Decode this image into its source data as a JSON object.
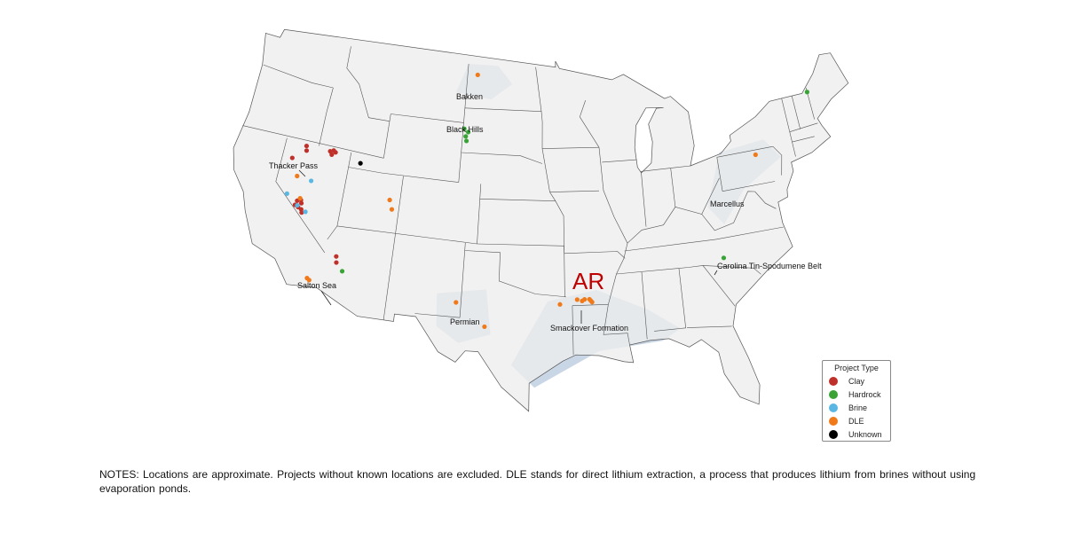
{
  "map": {
    "region": "United States (contiguous)",
    "colors": {
      "land": "#eeeeee",
      "border": "#555555",
      "basin": "#c9d6e6",
      "Clay": "#c0302a",
      "Hardrock": "#3aa336",
      "Brine": "#5ab7e3",
      "DLE": "#f07a1a",
      "Unknown": "#000000"
    },
    "region_labels": [
      "Bakken",
      "Black Hills",
      "Thacker Pass",
      "Marcellus",
      "Carolina Tin-Spodumene Belt",
      "Salton Sea",
      "Permian",
      "Smackover Formation"
    ],
    "highlight_label": "AR",
    "projects": [
      {
        "type": "Clay",
        "lon": -118.1,
        "lat": 41.8
      },
      {
        "type": "Clay",
        "lon": -118.0,
        "lat": 41.5
      },
      {
        "type": "Clay",
        "lon": -115.9,
        "lat": 41.8
      },
      {
        "type": "Clay",
        "lon": -115.6,
        "lat": 41.9
      },
      {
        "type": "Clay",
        "lon": -115.7,
        "lat": 41.6
      },
      {
        "type": "Clay",
        "lon": -115.4,
        "lat": 41.8
      },
      {
        "type": "Clay",
        "lon": -119.1,
        "lat": 40.8
      },
      {
        "type": "Clay",
        "lon": -117.5,
        "lat": 38.2
      },
      {
        "type": "Clay",
        "lon": -117.4,
        "lat": 38.0
      },
      {
        "type": "Clay",
        "lon": -117.9,
        "lat": 37.8
      },
      {
        "type": "Clay",
        "lon": -117.6,
        "lat": 37.7
      },
      {
        "type": "Clay",
        "lon": -117.3,
        "lat": 37.6
      },
      {
        "type": "Clay",
        "lon": -117.8,
        "lat": 38.1
      },
      {
        "type": "Clay",
        "lon": -117.2,
        "lat": 37.4
      },
      {
        "type": "Clay",
        "lon": -113.6,
        "lat": 35.0
      },
      {
        "type": "Clay",
        "lon": -113.5,
        "lat": 34.6
      },
      {
        "type": "Hardrock",
        "lon": -112.9,
        "lat": 34.1
      },
      {
        "type": "Hardrock",
        "lon": -103.9,
        "lat": 44.6
      },
      {
        "type": "Hardrock",
        "lon": -103.5,
        "lat": 44.4
      },
      {
        "type": "Hardrock",
        "lon": -103.6,
        "lat": 43.8
      },
      {
        "type": "Hardrock",
        "lon": -103.7,
        "lat": 44.1
      },
      {
        "type": "Hardrock",
        "lon": -71.0,
        "lat": 45.0
      },
      {
        "type": "Hardrock",
        "lon": -81.3,
        "lat": 35.3
      },
      {
        "type": "Brine",
        "lon": -117.0,
        "lat": 39.6
      },
      {
        "type": "Brine",
        "lon": -118.8,
        "lat": 38.4
      },
      {
        "type": "Brine",
        "lon": -116.9,
        "lat": 37.5
      },
      {
        "type": "Brine",
        "lon": -117.7,
        "lat": 37.8
      },
      {
        "type": "DLE",
        "lon": -118.3,
        "lat": 39.7
      },
      {
        "type": "DLE",
        "lon": -117.6,
        "lat": 38.3
      },
      {
        "type": "DLE",
        "lon": -109.9,
        "lat": 39.3
      },
      {
        "type": "DLE",
        "lon": -109.6,
        "lat": 38.7
      },
      {
        "type": "DLE",
        "lon": -115.6,
        "lat": 33.2
      },
      {
        "type": "DLE",
        "lon": -115.4,
        "lat": 33.1
      },
      {
        "type": "DLE",
        "lon": -103.4,
        "lat": 33.0
      },
      {
        "type": "DLE",
        "lon": -101.0,
        "lat": 31.5
      },
      {
        "type": "DLE",
        "lon": -103.0,
        "lat": 48.3
      },
      {
        "type": "DLE",
        "lon": -95.0,
        "lat": 33.1
      },
      {
        "type": "DLE",
        "lon": -93.6,
        "lat": 33.4
      },
      {
        "type": "DLE",
        "lon": -93.2,
        "lat": 33.3
      },
      {
        "type": "DLE",
        "lon": -93.0,
        "lat": 33.4
      },
      {
        "type": "DLE",
        "lon": -92.6,
        "lat": 33.4
      },
      {
        "type": "DLE",
        "lon": -92.4,
        "lat": 33.2
      },
      {
        "type": "DLE",
        "lon": -92.5,
        "lat": 33.3
      },
      {
        "type": "DLE",
        "lon": -77.0,
        "lat": 41.7
      },
      {
        "type": "Unknown",
        "lon": -113.0,
        "lat": 41.4
      }
    ]
  },
  "legend": {
    "title": "Project Type",
    "items": [
      "Clay",
      "Hardrock",
      "Brine",
      "DLE",
      "Unknown"
    ]
  },
  "notes": "NOTES: Locations are approximate. Projects without known locations are excluded. DLE stands for direct lithium extraction, a process that produces lithium from brines without using evaporation ponds."
}
